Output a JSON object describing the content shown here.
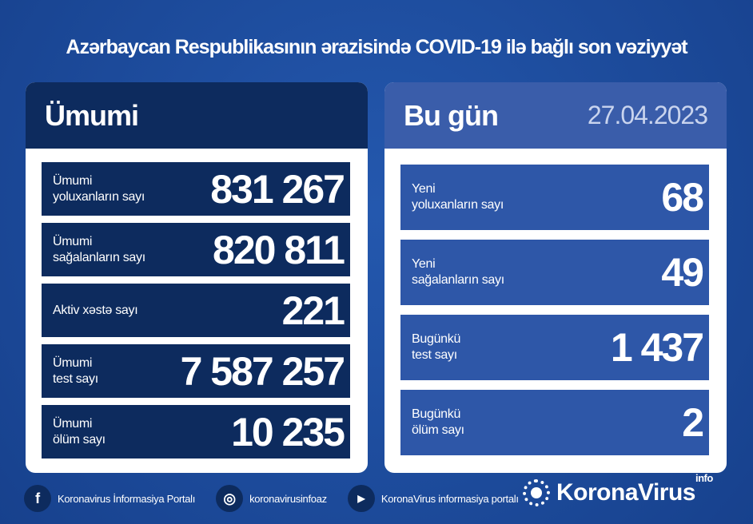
{
  "title": "Azərbaycan Respublikasının ərazisində COVID-19 ilə bağlı son vəziyyət",
  "colors": {
    "background": "#1d4d9e",
    "dark_panel": "#0d2b5e",
    "today_header": "#3a5daa",
    "today_row": "#2e57a8"
  },
  "total": {
    "heading": "Ümumi",
    "rows": [
      {
        "label1": "Ümumi",
        "label2": "yoluxanların sayı",
        "value": "831 267"
      },
      {
        "label1": "Ümumi",
        "label2": "sağalanların sayı",
        "value": "820 811"
      },
      {
        "label1": "Aktiv xəstə sayı",
        "label2": "",
        "value": "221"
      },
      {
        "label1": "Ümumi",
        "label2": "test sayı",
        "value": "7 587 257"
      },
      {
        "label1": "Ümumi",
        "label2": "ölüm sayı",
        "value": "10 235"
      }
    ]
  },
  "today": {
    "heading": "Bu gün",
    "date": "27.04.2023",
    "rows": [
      {
        "label1": "Yeni",
        "label2": "yoluxanların sayı",
        "value": "68"
      },
      {
        "label1": "Yeni",
        "label2": "sağalanların sayı",
        "value": "49"
      },
      {
        "label1": "Bugünkü",
        "label2": "test sayı",
        "value": "1 437"
      },
      {
        "label1": "Bugünkü",
        "label2": "ölüm sayı",
        "value": "2"
      }
    ]
  },
  "footer": {
    "facebook": "Koronavirus İnformasiya Portalı",
    "instagram": "koronavirusinfoaz",
    "youtube": "KoronaVirus informasiya portalı"
  },
  "logo": {
    "name": "KoronaVirus",
    "suffix": "info"
  }
}
